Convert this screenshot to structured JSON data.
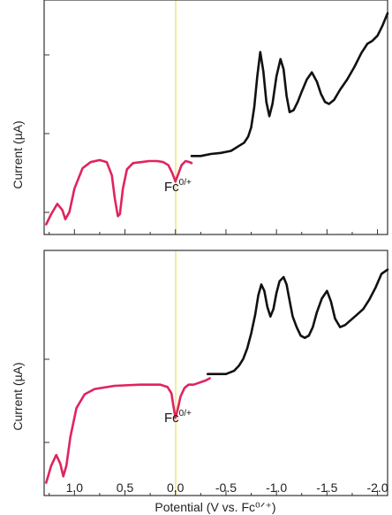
{
  "chart_data": [
    {
      "type": "line",
      "panel": "top",
      "ylabel": "Current (µA)",
      "xlim": [
        1.3,
        -2.1
      ],
      "reference_line": {
        "x": 0.0,
        "color": "#f3ee9a"
      },
      "annotation": {
        "base": "Fc",
        "sup": "0/+",
        "x": 0.0
      },
      "series": [
        {
          "color": "#e0245e",
          "x": [
            1.28,
            1.23,
            1.17,
            1.12,
            1.09,
            1.05,
            1.0,
            0.92,
            0.84,
            0.75,
            0.68,
            0.63,
            0.6,
            0.57,
            0.55,
            0.52,
            0.48,
            0.42,
            0.34,
            0.26,
            0.18,
            0.12,
            0.07,
            0.03,
            0.0,
            -0.03,
            -0.06,
            -0.1,
            -0.14,
            -0.16
          ],
          "y": [
            0.1,
            0.2,
            0.3,
            0.24,
            0.15,
            0.22,
            0.45,
            0.65,
            0.71,
            0.73,
            0.71,
            0.58,
            0.35,
            0.18,
            0.2,
            0.45,
            0.64,
            0.7,
            0.71,
            0.72,
            0.72,
            0.71,
            0.68,
            0.6,
            0.52,
            0.6,
            0.68,
            0.72,
            0.71,
            0.7
          ]
        },
        {
          "color": "#111111",
          "x": [
            -0.16,
            -0.25,
            -0.35,
            -0.45,
            -0.55,
            -0.63,
            -0.68,
            -0.72,
            -0.75,
            -0.78,
            -0.81,
            -0.84,
            -0.87,
            -0.9,
            -0.93,
            -0.96,
            -1.0,
            -1.04,
            -1.07,
            -1.1,
            -1.13,
            -1.17,
            -1.21,
            -1.25,
            -1.3,
            -1.35,
            -1.4,
            -1.44,
            -1.48,
            -1.52,
            -1.57,
            -1.63,
            -1.7,
            -1.77,
            -1.84,
            -1.9,
            -1.95,
            -2.0,
            -2.05,
            -2.1
          ],
          "y": [
            0.77,
            0.77,
            0.79,
            0.8,
            0.82,
            0.87,
            0.9,
            0.96,
            1.05,
            1.25,
            1.55,
            1.79,
            1.6,
            1.3,
            1.16,
            1.28,
            1.55,
            1.72,
            1.62,
            1.36,
            1.2,
            1.22,
            1.3,
            1.4,
            1.52,
            1.59,
            1.5,
            1.38,
            1.3,
            1.28,
            1.32,
            1.42,
            1.52,
            1.64,
            1.78,
            1.87,
            1.9,
            1.95,
            2.05,
            2.17
          ]
        }
      ]
    },
    {
      "type": "line",
      "panel": "bottom",
      "ylabel": "Current (µA)",
      "xlabel": "Potential (V vs. Fc⁰ᐟ⁺)",
      "xlim": [
        1.3,
        -2.1
      ],
      "x_ticks": [
        "1.0",
        "0.5",
        "0.0",
        "-0.5",
        "-1.0",
        "-1.5",
        "-2.0"
      ],
      "x_tick_values": [
        1.0,
        0.5,
        0.0,
        -0.5,
        -1.0,
        -1.5,
        -2.0
      ],
      "reference_line": {
        "x": 0.0,
        "color": "#f3ee9a"
      },
      "annotation": {
        "base": "Fc",
        "sup": "0/+",
        "x": 0.0
      },
      "series": [
        {
          "color": "#e0245e",
          "x": [
            1.28,
            1.23,
            1.18,
            1.14,
            1.11,
            1.08,
            1.04,
            0.98,
            0.9,
            0.8,
            0.6,
            0.35,
            0.15,
            0.08,
            0.04,
            0.02,
            0.0,
            -0.02,
            -0.05,
            -0.09,
            -0.13,
            -0.18,
            -0.24,
            -0.3,
            -0.34
          ],
          "y": [
            0.12,
            0.28,
            0.38,
            0.3,
            0.18,
            0.28,
            0.55,
            0.82,
            0.95,
            1.0,
            1.03,
            1.04,
            1.04,
            1.02,
            0.96,
            0.84,
            0.73,
            0.8,
            0.93,
            1.01,
            1.04,
            1.04,
            1.06,
            1.08,
            1.1
          ]
        },
        {
          "color": "#111111",
          "x": [
            -0.32,
            -0.4,
            -0.5,
            -0.58,
            -0.63,
            -0.67,
            -0.71,
            -0.75,
            -0.79,
            -0.82,
            -0.85,
            -0.88,
            -0.91,
            -0.94,
            -0.97,
            -1.0,
            -1.03,
            -1.07,
            -1.1,
            -1.13,
            -1.16,
            -1.2,
            -1.24,
            -1.28,
            -1.32,
            -1.36,
            -1.4,
            -1.45,
            -1.5,
            -1.54,
            -1.58,
            -1.63,
            -1.68,
            -1.74,
            -1.8,
            -1.86,
            -1.92,
            -1.98,
            -2.04,
            -2.1
          ],
          "y": [
            1.14,
            1.14,
            1.14,
            1.17,
            1.22,
            1.28,
            1.38,
            1.52,
            1.7,
            1.88,
            1.98,
            1.92,
            1.77,
            1.68,
            1.75,
            1.9,
            2.01,
            2.05,
            1.98,
            1.83,
            1.68,
            1.58,
            1.5,
            1.48,
            1.5,
            1.58,
            1.72,
            1.85,
            1.92,
            1.82,
            1.66,
            1.58,
            1.6,
            1.65,
            1.7,
            1.75,
            1.84,
            1.95,
            2.08,
            2.12
          ]
        }
      ]
    }
  ]
}
